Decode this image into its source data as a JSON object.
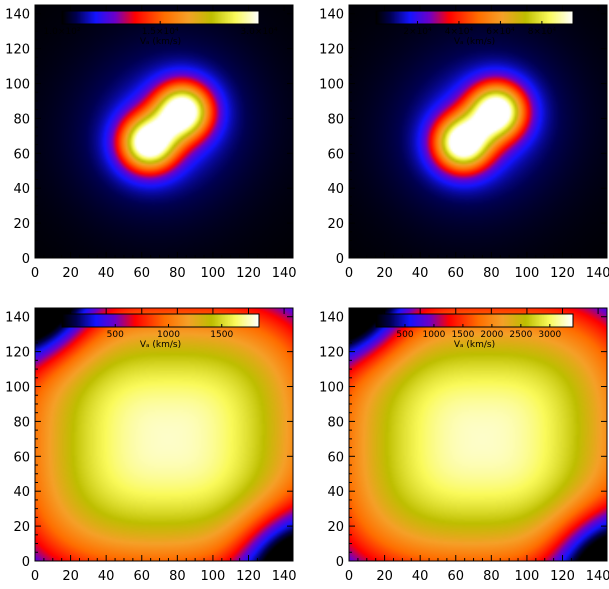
{
  "chart_data": [
    {
      "type": "heatmap",
      "panel": "top-left",
      "xlim": [
        0,
        145
      ],
      "ylim": [
        0,
        145
      ],
      "x_ticks": [
        "0",
        "20",
        "40",
        "60",
        "80",
        "100",
        "120",
        "140"
      ],
      "y_ticks": [
        "0",
        "20",
        "40",
        "60",
        "80",
        "100",
        "120",
        "140"
      ],
      "colorbar": {
        "placement": "top",
        "range": [
          100,
          30000
        ],
        "labels": [
          "1.0×10²",
          "1.5×10⁴",
          "3.0×10⁴"
        ],
        "label_values": [
          100,
          15000,
          30000
        ],
        "title": "Vₐ (km/s)"
      },
      "field": {
        "pattern": "two-peaks",
        "peaks": [
          {
            "x": 64,
            "y": 66
          },
          {
            "x": 83,
            "y": 84
          }
        ]
      }
    },
    {
      "type": "heatmap",
      "panel": "top-right",
      "xlim": [
        0,
        145
      ],
      "ylim": [
        0,
        145
      ],
      "x_ticks": [
        "0",
        "20",
        "40",
        "60",
        "80",
        "100",
        "120",
        "140"
      ],
      "y_ticks": [
        "0",
        "20",
        "40",
        "60",
        "80",
        "100",
        "120",
        "140"
      ],
      "colorbar": {
        "placement": "top",
        "range": [
          0,
          95000
        ],
        "labels": [
          "2×10⁴",
          "4×10⁴",
          "6×10⁴",
          "8×10⁴"
        ],
        "label_values": [
          20000,
          40000,
          60000,
          80000
        ],
        "title": "Vₐ (km/s)"
      },
      "field": {
        "pattern": "two-peaks",
        "peaks": [
          {
            "x": 64,
            "y": 66
          },
          {
            "x": 83,
            "y": 84
          }
        ]
      }
    },
    {
      "type": "heatmap",
      "panel": "bottom-left",
      "xlim": [
        0,
        145
      ],
      "ylim": [
        0,
        145
      ],
      "x_ticks": [
        "0",
        "20",
        "40",
        "60",
        "80",
        "100",
        "120",
        "140"
      ],
      "y_ticks": [
        "0",
        "20",
        "40",
        "60",
        "80",
        "100",
        "120",
        "140"
      ],
      "colorbar": {
        "placement": "top",
        "range": [
          0,
          1850
        ],
        "labels": [
          "500",
          "1000",
          "1500"
        ],
        "label_values": [
          500,
          1000,
          1500
        ],
        "title": "Vₐ (km/s)"
      },
      "field": {
        "pattern": "broad-plateau",
        "center": {
          "x": 75,
          "y": 70
        },
        "low_regions": [
          {
            "x": 0,
            "y": 145
          },
          {
            "x": 145,
            "y": 0
          }
        ]
      }
    },
    {
      "type": "heatmap",
      "panel": "bottom-right",
      "xlim": [
        0,
        145
      ],
      "ylim": [
        0,
        145
      ],
      "x_ticks": [
        "0",
        "20",
        "40",
        "60",
        "80",
        "100",
        "120",
        "140"
      ],
      "y_ticks": [
        "0",
        "20",
        "40",
        "60",
        "80",
        "100",
        "120",
        "140"
      ],
      "colorbar": {
        "placement": "top",
        "range": [
          0,
          3400
        ],
        "labels": [
          "500",
          "1000",
          "1500",
          "2000",
          "2500",
          "3000"
        ],
        "label_values": [
          500,
          1000,
          1500,
          2000,
          2500,
          3000
        ],
        "title": "Vₐ (km/s)"
      },
      "field": {
        "pattern": "broad-plateau",
        "center": {
          "x": 75,
          "y": 70
        },
        "low_regions": [
          {
            "x": 0,
            "y": 145
          },
          {
            "x": 145,
            "y": 0
          }
        ]
      }
    }
  ]
}
